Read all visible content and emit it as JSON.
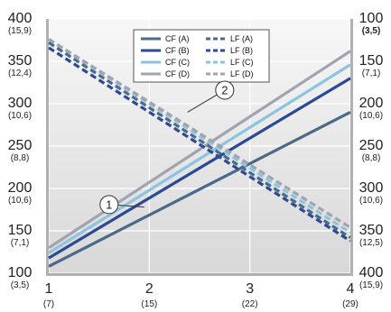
{
  "chart_data": {
    "type": "line",
    "x_ticks": [
      {
        "main": "1",
        "sub": "(7)"
      },
      {
        "main": "2",
        "sub": "(15)"
      },
      {
        "main": "3",
        "sub": "(22)"
      },
      {
        "main": "4",
        "sub": "(29)"
      }
    ],
    "x_range": [
      1,
      4
    ],
    "y_left_range": [
      100,
      400
    ],
    "y_left_ticks": [
      {
        "value": 400,
        "main": "400",
        "sub": "(15,9)"
      },
      {
        "value": 350,
        "main": "350",
        "sub": "(12,4)"
      },
      {
        "value": 300,
        "main": "300",
        "sub": "(10,6)"
      },
      {
        "value": 250,
        "main": "250",
        "sub": "(8,8)"
      },
      {
        "value": 200,
        "main": "200",
        "sub": "(10,6)"
      },
      {
        "value": 150,
        "main": "150",
        "sub": "(7,1)"
      },
      {
        "value": 100,
        "main": "100",
        "sub": "(3,5)"
      }
    ],
    "y_right_range": [
      100,
      400
    ],
    "y_right_inverted": true,
    "y_right_ticks": [
      {
        "value": 100,
        "main": "100",
        "sub": "(3,5)",
        "sub_bold": true
      },
      {
        "value": 150,
        "main": "150",
        "sub": "(7,1)"
      },
      {
        "value": 200,
        "main": "200",
        "sub": "(10,6)"
      },
      {
        "value": 250,
        "main": "250",
        "sub": "(8,8)"
      },
      {
        "value": 300,
        "main": "300",
        "sub": "(10,6)"
      },
      {
        "value": 350,
        "main": "350",
        "sub": "(12,5)"
      },
      {
        "value": 400,
        "main": "400",
        "sub": "(15,9)"
      }
    ],
    "grid": true,
    "legend_position": "top-center",
    "series": [
      {
        "name": "CF (A)",
        "axis": "left",
        "style": "solid",
        "color": "#4a6a8a",
        "points": [
          [
            1,
            108
          ],
          [
            4,
            290
          ]
        ]
      },
      {
        "name": "CF (B)",
        "axis": "left",
        "style": "solid",
        "color": "#2c4a94",
        "points": [
          [
            1,
            118
          ],
          [
            4,
            330
          ]
        ]
      },
      {
        "name": "CF (C)",
        "axis": "left",
        "style": "solid",
        "color": "#8cc4e0",
        "points": [
          [
            1,
            124
          ],
          [
            4,
            346
          ]
        ]
      },
      {
        "name": "CF (D)",
        "axis": "left",
        "style": "solid",
        "color": "#a0a4b0",
        "points": [
          [
            1,
            130
          ],
          [
            4,
            362
          ]
        ]
      },
      {
        "name": "LF (A)",
        "axis": "right",
        "style": "dashed",
        "color": "#4a6a8a",
        "points": [
          [
            1,
            128
          ],
          [
            4,
            358
          ]
        ]
      },
      {
        "name": "LF (B)",
        "axis": "right",
        "style": "dashed",
        "color": "#2c4a94",
        "points": [
          [
            1,
            134
          ],
          [
            4,
            362
          ]
        ]
      },
      {
        "name": "LF (C)",
        "axis": "right",
        "style": "dashed",
        "color": "#8cc4e0",
        "points": [
          [
            1,
            124
          ],
          [
            4,
            352
          ]
        ]
      },
      {
        "name": "LF (D)",
        "axis": "right",
        "style": "dashed",
        "color": "#a0a4b0",
        "points": [
          [
            1,
            124
          ],
          [
            4,
            346
          ]
        ]
      }
    ],
    "legend_order": [
      0,
      4,
      1,
      5,
      2,
      6,
      3,
      7
    ],
    "annotations": [
      {
        "label": "1",
        "x": 1.6,
        "y": 181,
        "target_x": 1.95,
        "target_y": 178
      },
      {
        "label": "2",
        "x": 2.75,
        "y": 316,
        "target_x": 2.38,
        "target_y": 290
      }
    ]
  },
  "colors": {
    "plot_bg_top": "#f7f7f7",
    "plot_bg_bottom": "#d8d8d8",
    "grid": "#ffffff",
    "axis_bar": "#b0b0b0"
  }
}
